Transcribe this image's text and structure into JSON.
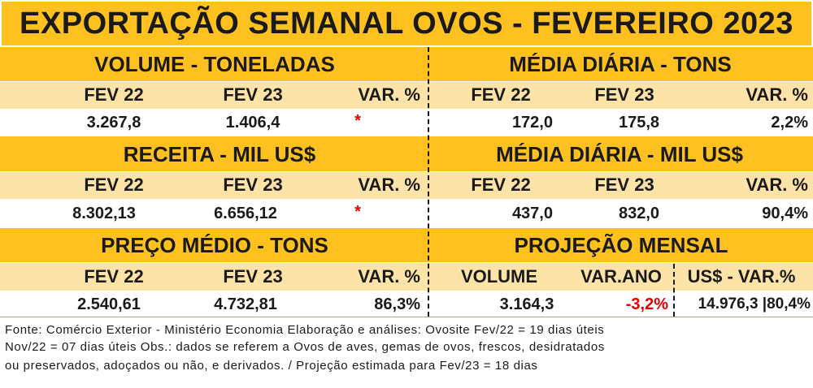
{
  "title": "EXPORTAÇÃO SEMANAL OVOS - FEVEREIRO 2023",
  "sections": {
    "volume": {
      "header": "VOLUME - TONELADAS",
      "col1": "FEV 22",
      "col2": "FEV 23",
      "col3": "VAR. %",
      "v1": "3.267,8",
      "v2": "1.406,4",
      "v3": "*"
    },
    "media_tons": {
      "header": "MÉDIA DIÁRIA - TONS",
      "col1": "FEV 22",
      "col2": "FEV 23",
      "col3": "VAR. %",
      "v1": "172,0",
      "v2": "175,8",
      "v3": "2,2%"
    },
    "receita": {
      "header": "RECEITA - MIL US$",
      "col1": "FEV 22",
      "col2": "FEV 23",
      "col3": "VAR. %",
      "v1": "8.302,13",
      "v2": "6.656,12",
      "v3": "*"
    },
    "media_usd": {
      "header": "MÉDIA DIÁRIA - MIL US$",
      "col1": "FEV 22",
      "col2": "FEV 23",
      "col3": "VAR. %",
      "v1": "437,0",
      "v2": "832,0",
      "v3": "90,4%"
    },
    "preco": {
      "header": "PREÇO MÉDIO - TONS",
      "col1": "FEV 22",
      "col2": "FEV 23",
      "col3": "VAR. %",
      "v1": "2.540,61",
      "v2": "4.732,81",
      "v3": "86,3%"
    },
    "projecao": {
      "header": "PROJEÇÃO  MENSAL",
      "col1": "VOLUME",
      "col2": "VAR.ANO",
      "col3": "US$ - VAR.%",
      "v1": "3.164,3",
      "v2": "-3,2%",
      "v3": "14.976,3 |80,4%"
    }
  },
  "footer": {
    "line1": "Fonte: Comércio Exterior - Ministério Economia    Elaboração e análises: Ovosite   Fev/22 = 19 dias úteis",
    "line2": "Nov/22 = 07 dias úteis    Obs.: dados se referem a Ovos de aves, gemas de ovos, frescos, desidratados",
    "line3": "ou preservados, adoçados ou não, e derivados. / Projeção estimada para Fev/23 = 18 dias"
  },
  "colors": {
    "header_yellow": "#fec11f",
    "subheader_cream": "#fde3a7",
    "negative_red": "#e00000"
  }
}
